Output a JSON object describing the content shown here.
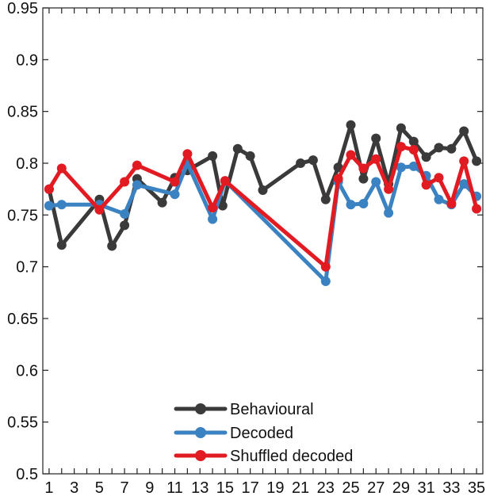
{
  "chart_data": {
    "type": "line",
    "title": "",
    "xlabel": "",
    "ylabel": "",
    "xlim": [
      0.5,
      35.5
    ],
    "ylim": [
      0.5,
      0.95
    ],
    "x_ticks": [
      1,
      3,
      5,
      7,
      9,
      11,
      13,
      15,
      17,
      19,
      21,
      23,
      25,
      27,
      29,
      31,
      33,
      35
    ],
    "x_tick_labels": [
      "1",
      "3",
      "5",
      "7",
      "9",
      "11",
      "13",
      "15",
      "17",
      "19",
      "21",
      "23",
      "25",
      "27",
      "29",
      "31",
      "33",
      "35"
    ],
    "y_ticks": [
      0.5,
      0.55,
      0.6,
      0.65,
      0.7,
      0.75,
      0.8,
      0.85,
      0.9,
      0.95
    ],
    "y_tick_labels": [
      "0.5",
      "0.55",
      "0.6",
      "0.65",
      "0.7",
      "0.75",
      "0.8",
      "0.85",
      "0.9",
      "0.95"
    ],
    "grid": false,
    "legend_position": "bottom-center",
    "series": [
      {
        "name": "Behavioural",
        "color": "#3a3a3a",
        "points": [
          [
            1,
            0.775
          ],
          [
            2,
            0.721
          ],
          [
            5,
            0.765
          ],
          [
            6,
            0.72
          ],
          [
            7,
            0.74
          ],
          [
            8,
            0.785
          ],
          [
            10,
            0.762
          ],
          [
            11,
            0.786
          ],
          [
            12,
            0.793
          ],
          [
            14,
            0.807
          ],
          [
            14.8,
            0.759
          ],
          [
            16,
            0.814
          ],
          [
            17,
            0.807
          ],
          [
            18,
            0.774
          ],
          [
            21,
            0.8
          ],
          [
            22,
            0.803
          ],
          [
            23,
            0.765
          ],
          [
            24,
            0.796
          ],
          [
            25,
            0.837
          ],
          [
            26,
            0.785
          ],
          [
            27,
            0.824
          ],
          [
            28,
            0.78
          ],
          [
            29,
            0.834
          ],
          [
            30,
            0.821
          ],
          [
            31,
            0.806
          ],
          [
            32,
            0.815
          ],
          [
            33,
            0.814
          ],
          [
            34,
            0.831
          ],
          [
            35,
            0.802
          ]
        ]
      },
      {
        "name": "Decoded",
        "color": "#3b82c2",
        "points": [
          [
            1,
            0.759
          ],
          [
            2,
            0.76
          ],
          [
            5,
            0.76
          ],
          [
            7,
            0.751
          ],
          [
            8,
            0.779
          ],
          [
            11,
            0.77
          ],
          [
            12,
            0.8
          ],
          [
            14,
            0.746
          ],
          [
            15,
            0.783
          ],
          [
            23,
            0.686
          ],
          [
            24,
            0.782
          ],
          [
            25,
            0.76
          ],
          [
            26,
            0.761
          ],
          [
            27,
            0.782
          ],
          [
            28,
            0.752
          ],
          [
            29,
            0.796
          ],
          [
            30,
            0.797
          ],
          [
            31,
            0.788
          ],
          [
            32,
            0.765
          ],
          [
            33,
            0.76
          ],
          [
            34,
            0.78
          ],
          [
            35,
            0.768
          ]
        ]
      },
      {
        "name": "Shuffled decoded",
        "color": "#e21a22",
        "points": [
          [
            1,
            0.775
          ],
          [
            2,
            0.795
          ],
          [
            5,
            0.755
          ],
          [
            7,
            0.782
          ],
          [
            8,
            0.798
          ],
          [
            11,
            0.782
          ],
          [
            12,
            0.809
          ],
          [
            14,
            0.757
          ],
          [
            15,
            0.783
          ],
          [
            23,
            0.7
          ],
          [
            24,
            0.785
          ],
          [
            25,
            0.808
          ],
          [
            26,
            0.795
          ],
          [
            27,
            0.804
          ],
          [
            28,
            0.775
          ],
          [
            29,
            0.816
          ],
          [
            30,
            0.813
          ],
          [
            31,
            0.779
          ],
          [
            32,
            0.786
          ],
          [
            33,
            0.761
          ],
          [
            34,
            0.802
          ],
          [
            35,
            0.756
          ]
        ]
      }
    ]
  }
}
